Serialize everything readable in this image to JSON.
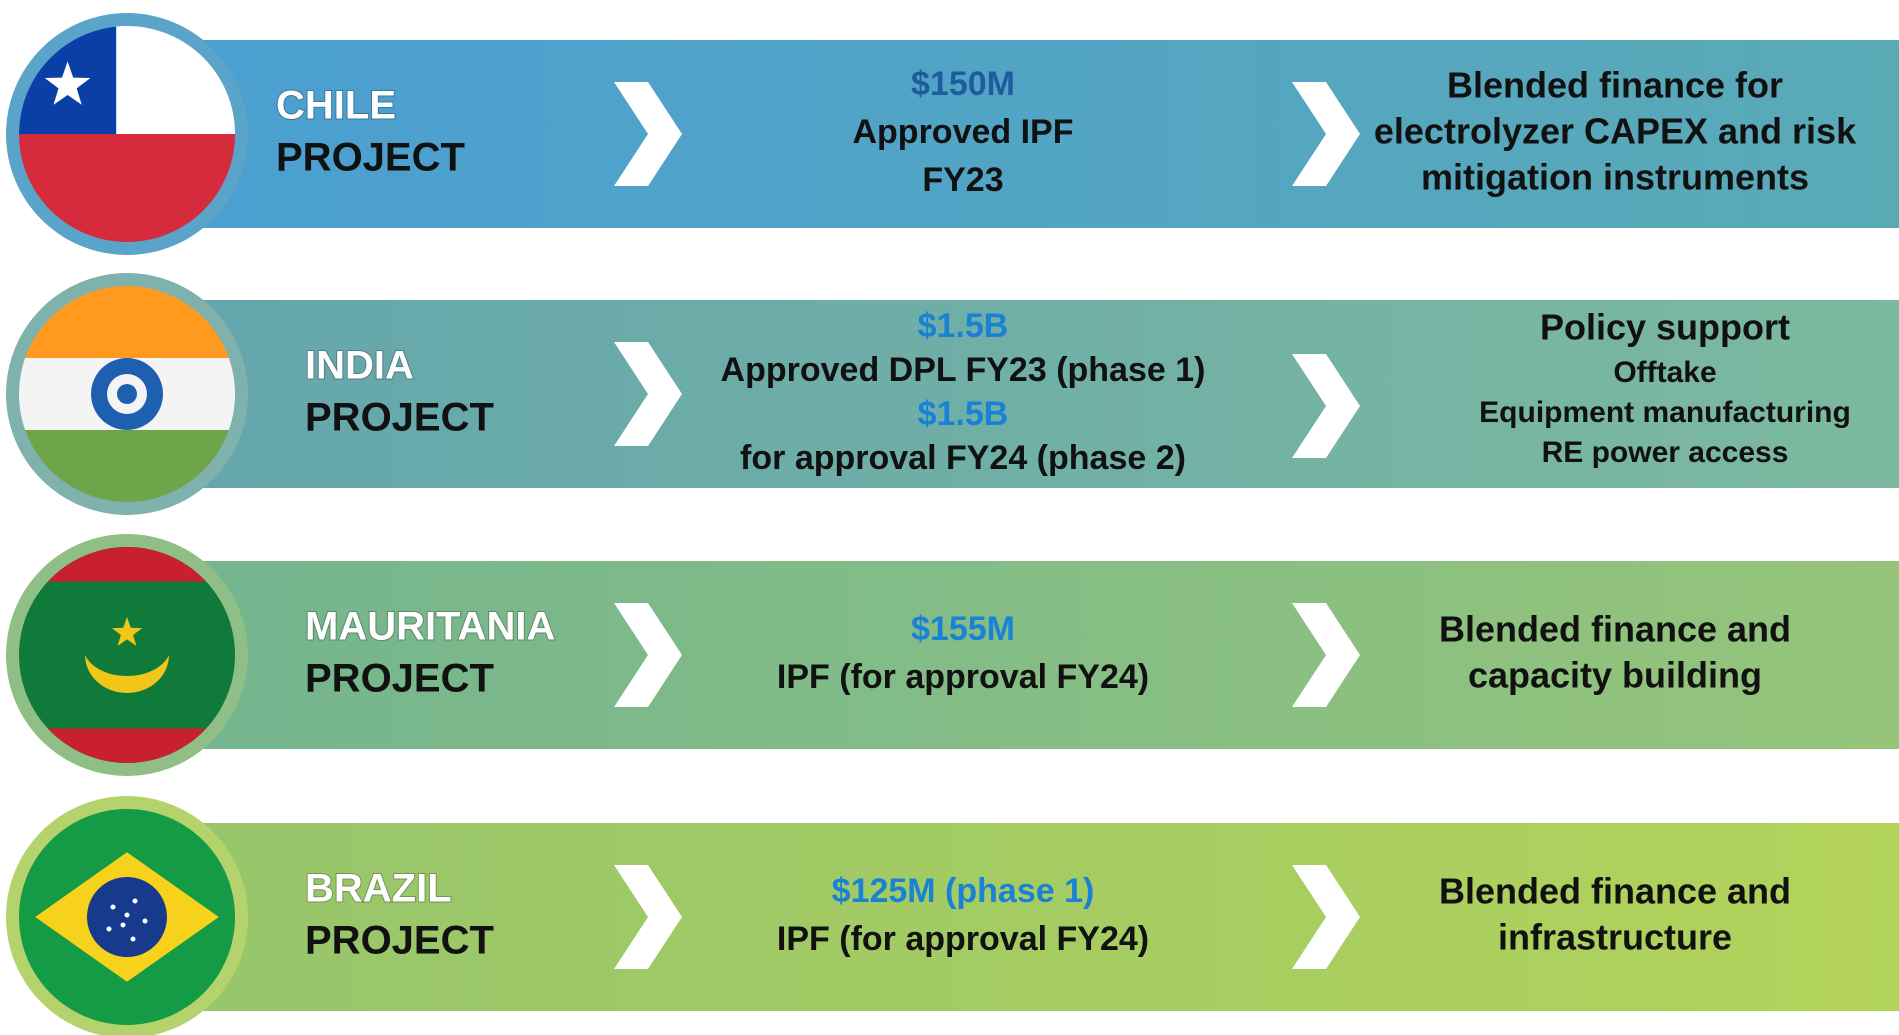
{
  "rows": [
    {
      "country": "CHILE",
      "project": "PROJECT",
      "funding": [
        {
          "amount": "$150M",
          "detail": [
            "Approved IPF",
            "FY23"
          ]
        }
      ],
      "description": [
        "Blended finance for",
        "electrolyzer CAPEX and risk",
        "mitigation instruments"
      ]
    },
    {
      "country": "INDIA",
      "project": "PROJECT",
      "funding": [
        {
          "amount": "$1.5B",
          "detail": [
            "Approved DPL FY23 (phase 1)"
          ]
        },
        {
          "amount": "$1.5B",
          "detail": [
            "for approval FY24 (phase 2)"
          ]
        }
      ],
      "description": [
        "Policy support",
        "Offtake",
        "Equipment manufacturing",
        "RE power access"
      ]
    },
    {
      "country": "MAURITANIA",
      "project": "PROJECT",
      "funding": [
        {
          "amount": "$155M",
          "detail": [
            "IPF (for approval FY24)"
          ]
        }
      ],
      "description": [
        "Blended finance and",
        "capacity building"
      ]
    },
    {
      "country": "BRAZIL",
      "project": "PROJECT",
      "funding": [
        {
          "amount": "$125M (phase 1)",
          "detail": [
            "IPF (for approval FY24)"
          ]
        }
      ],
      "description": [
        "Blended finance and",
        "infrastructure"
      ]
    }
  ]
}
